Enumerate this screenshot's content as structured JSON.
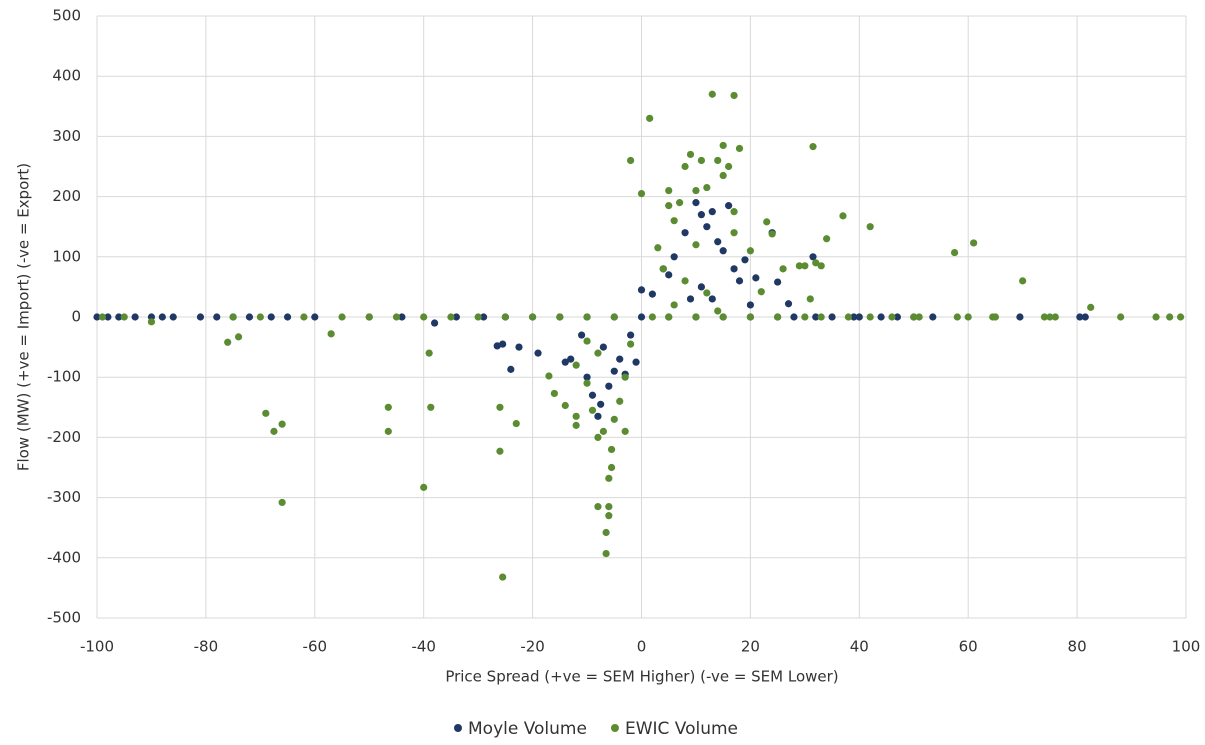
{
  "chart_data": {
    "type": "scatter",
    "x_label": "Price Spread (+ve = SEM Higher) (-ve = SEM Lower)",
    "y_label": "Flow (MW) (+ve = Import) (-ve = Export)",
    "xlim": [
      -100,
      100
    ],
    "xticks": [
      -100,
      -80,
      -60,
      -40,
      -20,
      0,
      20,
      40,
      60,
      80,
      100
    ],
    "ylim": [
      -500,
      500
    ],
    "yticks": [
      -500,
      -400,
      -300,
      -200,
      -100,
      0,
      100,
      200,
      300,
      400,
      500
    ],
    "grid": true,
    "legend": "bottom",
    "series": [
      {
        "name": "Moyle Volume",
        "color": "#1f3864",
        "x": [
          -100,
          -98,
          -96,
          -93,
          -90,
          -88,
          -86,
          -81,
          -78,
          -75,
          -72,
          -68,
          -65,
          -60,
          -50,
          -44,
          -38,
          -34,
          -29,
          -25,
          -20,
          -15,
          -10,
          -5,
          0,
          5,
          10,
          15,
          20,
          25,
          28,
          32,
          35,
          39,
          40,
          44,
          47,
          50,
          53.5,
          69.5,
          80.5,
          81.5,
          -26.5,
          -25.5,
          -24,
          -22.5,
          -19,
          -14,
          -13,
          -10,
          -9,
          -8,
          -7.5,
          -6,
          -5,
          -4,
          -3,
          -2,
          -1,
          0,
          2,
          4,
          5,
          6,
          8,
          10,
          11,
          12,
          13,
          14,
          15,
          16,
          17,
          18,
          19,
          20,
          21,
          24,
          25,
          27,
          31.5,
          9,
          11,
          13,
          -11,
          -7
        ],
        "values": [
          0,
          0,
          0,
          0,
          0,
          0,
          0,
          0,
          0,
          0,
          0,
          0,
          0,
          0,
          0,
          0,
          -10,
          0,
          0,
          0,
          0,
          0,
          0,
          0,
          0,
          0,
          0,
          0,
          0,
          0,
          0,
          0,
          0,
          0,
          0,
          0,
          0,
          0,
          0,
          0,
          0,
          0,
          -48,
          -45,
          -87,
          -50,
          -60,
          -75,
          -70,
          -100,
          -130,
          -165,
          -145,
          -115,
          -90,
          -70,
          -95,
          -30,
          -75,
          45,
          38,
          80,
          70,
          100,
          140,
          190,
          170,
          150,
          175,
          125,
          110,
          185,
          80,
          60,
          95,
          20,
          65,
          140,
          58,
          22,
          100,
          30,
          50,
          30,
          -30,
          -50
        ]
      },
      {
        "name": "EWIC Volume",
        "color": "#5b8c32",
        "x": [
          -99,
          -95,
          -90,
          -75,
          -70,
          -62,
          -55,
          -50,
          -45,
          -40,
          -35,
          -30,
          -25,
          -20,
          -15,
          -10,
          -5,
          2,
          5,
          10,
          15,
          20,
          25,
          30,
          33,
          38,
          42,
          46,
          50,
          51,
          58,
          60,
          64.5,
          65,
          74,
          75,
          76,
          88,
          94.5,
          97,
          99,
          -76,
          -74,
          -69,
          -67.5,
          -66,
          -66,
          -57,
          -46.5,
          -46.5,
          -40,
          -39,
          -38.7,
          -26,
          -26,
          -25.5,
          -23,
          -17,
          -16,
          -14,
          -12,
          -12,
          -10,
          -9,
          -8,
          -7,
          -8,
          -6.5,
          -6.5,
          -6,
          -6,
          -6,
          -5.5,
          -5.5,
          -5,
          -4,
          -3,
          -3,
          -2,
          1.5,
          -2,
          0,
          3,
          4,
          5,
          5,
          6,
          7,
          8,
          9,
          10,
          11,
          12,
          13,
          14,
          15,
          15,
          16,
          17,
          17,
          17,
          18,
          20,
          22,
          23,
          24,
          26,
          29,
          30,
          31,
          31.5,
          32,
          33,
          34,
          37,
          42,
          57.5,
          61,
          70,
          82.5,
          10,
          8,
          12,
          6,
          14,
          -8,
          -10,
          -12
        ],
        "values": [
          0,
          0,
          -8,
          0,
          0,
          0,
          0,
          0,
          0,
          0,
          0,
          0,
          0,
          0,
          0,
          0,
          0,
          0,
          0,
          0,
          0,
          0,
          0,
          0,
          0,
          0,
          0,
          0,
          0,
          0,
          0,
          0,
          0,
          0,
          0,
          0,
          0,
          0,
          0,
          0,
          0,
          -42,
          -33,
          -160,
          -190,
          -178,
          -308,
          -28,
          -150,
          -190,
          -283,
          -60,
          -150,
          -223,
          -150,
          -432,
          -177,
          -98,
          -127,
          -147,
          -165,
          -180,
          -110,
          -155,
          -200,
          -190,
          -315,
          -358,
          -393,
          -330,
          -315,
          -268,
          -250,
          -220,
          -170,
          -140,
          -100,
          -190,
          -45,
          330,
          260,
          205,
          115,
          80,
          185,
          210,
          160,
          190,
          250,
          270,
          210,
          260,
          215,
          370,
          260,
          235,
          285,
          250,
          368,
          175,
          140,
          280,
          110,
          42,
          158,
          138,
          80,
          85,
          85,
          30,
          283,
          90,
          85,
          130,
          168,
          150,
          107,
          123,
          60,
          16,
          120,
          60,
          40,
          20,
          10,
          -60,
          -40,
          -80
        ]
      }
    ]
  }
}
